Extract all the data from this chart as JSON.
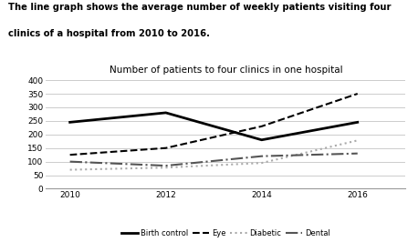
{
  "title": "Number of patients to four clinics in one hospital",
  "suptitle_line1": "The line graph shows the average number of weekly patients visiting four",
  "suptitle_line2": "clinics of a hospital from 2010 to 2016.",
  "years": [
    2010,
    2012,
    2014,
    2016
  ],
  "series": {
    "Birth control": {
      "values": [
        245,
        280,
        180,
        245
      ],
      "color": "#000000",
      "linestyle": "solid",
      "linewidth": 2.0
    },
    "Eye": {
      "values": [
        125,
        150,
        230,
        350
      ],
      "color": "#000000",
      "linestyle": "dashed",
      "linewidth": 1.5
    },
    "Diabetic": {
      "values": [
        70,
        78,
        95,
        178
      ],
      "color": "#aaaaaa",
      "linestyle": "dotted",
      "linewidth": 1.5
    },
    "Dental": {
      "values": [
        100,
        85,
        120,
        130
      ],
      "color": "#555555",
      "linestyle": "dashdot",
      "linewidth": 1.5
    }
  },
  "xlim": [
    2009.5,
    2017
  ],
  "ylim": [
    0,
    410
  ],
  "yticks": [
    0,
    50,
    100,
    150,
    200,
    250,
    300,
    350,
    400
  ],
  "xticks": [
    2010,
    2012,
    2014,
    2016
  ],
  "background_color": "#ffffff",
  "grid_color": "#cccccc",
  "figsize": [
    4.58,
    2.66
  ],
  "dpi": 100
}
